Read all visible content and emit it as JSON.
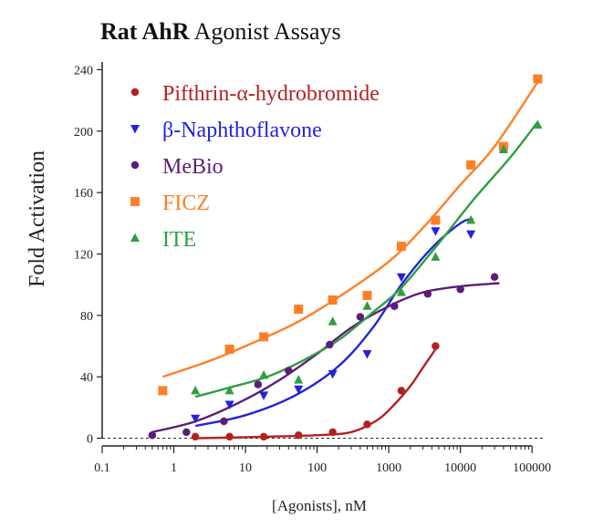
{
  "chart_data": {
    "type": "scatter",
    "title_bold": "Rat AhR",
    "title_rest": " Agonist Assays",
    "xlabel": "[Agonists], nM",
    "ylabel": "Fold Activation",
    "x_scale": "log",
    "xlim": [
      0.1,
      150000
    ],
    "ylim": [
      -5,
      245
    ],
    "x_ticks": [
      0.1,
      1,
      10,
      100,
      1000,
      10000,
      100000
    ],
    "x_tick_labels": [
      "0.1",
      "1",
      "10",
      "100",
      "1000",
      "10000",
      "100000"
    ],
    "y_ticks": [
      0,
      40,
      80,
      120,
      160,
      200,
      240
    ],
    "y_tick_labels": [
      "0",
      "40",
      "80",
      "120",
      "160",
      "200",
      "240"
    ],
    "baseline_dashed": true,
    "legend_position": "top-left",
    "series": [
      {
        "name": "Pifthrin-α-hydrobromide",
        "color": "#b22222",
        "marker": "circle",
        "points": [
          [
            2,
            1
          ],
          [
            6,
            1
          ],
          [
            18,
            1
          ],
          [
            55,
            2
          ],
          [
            165,
            4
          ],
          [
            500,
            9
          ],
          [
            1500,
            31
          ],
          [
            4500,
            60
          ]
        ],
        "curve": [
          [
            2,
            0
          ],
          [
            20,
            1
          ],
          [
            100,
            2
          ],
          [
            300,
            4
          ],
          [
            700,
            12
          ],
          [
            1200,
            22
          ],
          [
            2000,
            34
          ],
          [
            3000,
            46
          ],
          [
            4500,
            58
          ]
        ]
      },
      {
        "name": "β-Naphthoflavone",
        "color": "#2222dd",
        "marker": "triangle-down",
        "points": [
          [
            2,
            13
          ],
          [
            6,
            22
          ],
          [
            18,
            28
          ],
          [
            55,
            32
          ],
          [
            165,
            42
          ],
          [
            500,
            55
          ],
          [
            1500,
            105
          ],
          [
            4500,
            135
          ],
          [
            14000,
            133
          ]
        ],
        "curve": [
          [
            2,
            8
          ],
          [
            10,
            15
          ],
          [
            50,
            28
          ],
          [
            200,
            47
          ],
          [
            600,
            72
          ],
          [
            1500,
            100
          ],
          [
            4000,
            124
          ],
          [
            10000,
            140
          ],
          [
            15000,
            143
          ]
        ]
      },
      {
        "name": "MeBio",
        "color": "#5b1e78",
        "marker": "circle",
        "points": [
          [
            0.5,
            2
          ],
          [
            1.5,
            4
          ],
          [
            5,
            11
          ],
          [
            15,
            35
          ],
          [
            40,
            44
          ],
          [
            150,
            61
          ],
          [
            400,
            79
          ],
          [
            1200,
            86
          ],
          [
            3500,
            94
          ],
          [
            10000,
            97
          ],
          [
            30000,
            105
          ]
        ],
        "curve": [
          [
            0.5,
            4
          ],
          [
            2,
            11
          ],
          [
            8,
            23
          ],
          [
            30,
            38
          ],
          [
            100,
            55
          ],
          [
            300,
            72
          ],
          [
            1000,
            86
          ],
          [
            3000,
            95
          ],
          [
            10000,
            99
          ],
          [
            35000,
            101
          ]
        ]
      },
      {
        "name": "FICZ",
        "color": "#ff7f27",
        "marker": "square",
        "points": [
          [
            0.7,
            31
          ],
          [
            6,
            58
          ],
          [
            18,
            66
          ],
          [
            55,
            84
          ],
          [
            165,
            90
          ],
          [
            500,
            93
          ],
          [
            1500,
            125
          ],
          [
            4500,
            142
          ],
          [
            14000,
            178
          ],
          [
            40000,
            190
          ],
          [
            120000,
            234
          ]
        ],
        "curve": [
          [
            0.7,
            40
          ],
          [
            3,
            50
          ],
          [
            10,
            60
          ],
          [
            50,
            75
          ],
          [
            200,
            92
          ],
          [
            1000,
            115
          ],
          [
            3000,
            137
          ],
          [
            10000,
            165
          ],
          [
            30000,
            190
          ],
          [
            120000,
            232
          ]
        ]
      },
      {
        "name": "ITE",
        "color": "#2e9e3e",
        "marker": "triangle-up",
        "points": [
          [
            2,
            31
          ],
          [
            6,
            31
          ],
          [
            18,
            41
          ],
          [
            55,
            38
          ],
          [
            165,
            76
          ],
          [
            500,
            86
          ],
          [
            1500,
            95
          ],
          [
            4500,
            118
          ],
          [
            14000,
            142
          ],
          [
            40000,
            188
          ],
          [
            120000,
            204
          ]
        ],
        "curve": [
          [
            2,
            27
          ],
          [
            6,
            33
          ],
          [
            20,
            40
          ],
          [
            60,
            50
          ],
          [
            200,
            64
          ],
          [
            600,
            82
          ],
          [
            1500,
            98
          ],
          [
            5000,
            127
          ],
          [
            15000,
            155
          ],
          [
            50000,
            183
          ],
          [
            120000,
            206
          ]
        ]
      }
    ]
  }
}
